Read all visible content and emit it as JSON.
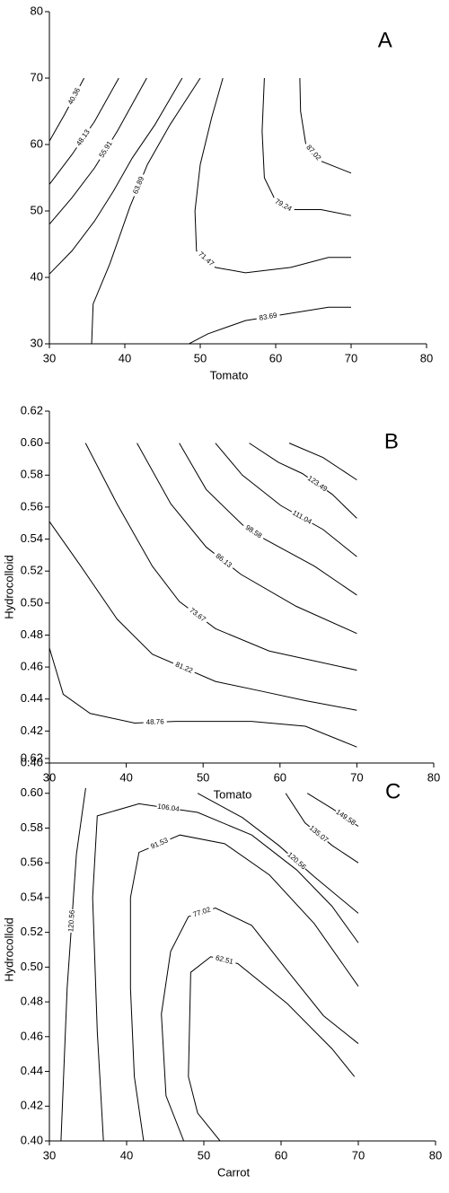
{
  "chart_data": [
    {
      "type": "contour",
      "panel_label": "A",
      "xlabel": "Tomato",
      "xlim": [
        30,
        80
      ],
      "ylim": [
        30,
        80
      ],
      "xticks": [
        30,
        40,
        50,
        60,
        70,
        80
      ],
      "yticks": [
        30,
        40,
        50,
        60,
        70,
        80
      ],
      "contours": [
        {
          "level": 40.36,
          "x": [
            30,
            32,
            34.6
          ],
          "y": [
            60.5,
            64.5,
            70
          ]
        },
        {
          "level": 48.13,
          "x": [
            30,
            33,
            36,
            39.2
          ],
          "y": [
            54,
            58.5,
            63.5,
            70
          ]
        },
        {
          "level": 55.91,
          "x": [
            30,
            33,
            36,
            39,
            42.9
          ],
          "y": [
            48,
            52,
            56.5,
            62,
            70
          ]
        },
        {
          "level": null,
          "x": [
            30,
            33,
            36,
            38.5,
            41,
            44,
            47.6
          ],
          "y": [
            40.5,
            44,
            48.5,
            53,
            58,
            63,
            70
          ]
        },
        {
          "level": 63.89,
          "x": [
            35.6,
            35.8,
            38,
            40.7,
            43,
            46,
            50
          ],
          "y": [
            30,
            36,
            42,
            50.7,
            57,
            63,
            70
          ]
        },
        {
          "level": 71.47,
          "x": [
            53,
            51.5,
            50,
            49.3,
            49.5,
            52,
            56,
            62,
            67,
            70
          ],
          "y": [
            70,
            64,
            57,
            50,
            44,
            41.5,
            40.7,
            41.5,
            43,
            43
          ]
        },
        {
          "level": 79.24,
          "x": [
            58.5,
            58.2,
            58.5,
            60,
            62,
            66,
            70
          ],
          "y": [
            70,
            62,
            55,
            51.5,
            50.2,
            50.2,
            49.3
          ]
        },
        {
          "level": 87.02,
          "x": [
            63.2,
            63.3,
            64,
            66,
            70
          ],
          "y": [
            70,
            65,
            60,
            57.5,
            55.7
          ]
        },
        {
          "level": 83.69,
          "x": [
            48.5,
            51,
            56,
            62,
            67,
            70
          ],
          "y": [
            30,
            31.5,
            33.5,
            34.6,
            35.5,
            35.5
          ]
        }
      ]
    },
    {
      "type": "contour",
      "panel_label": "B",
      "xlabel": "Tomato",
      "ylabel": "Hydrocolloid",
      "xlim": [
        30,
        80
      ],
      "ylim": [
        0.4,
        0.62
      ],
      "xticks": [
        30,
        40,
        50,
        60,
        70,
        80
      ],
      "yticks": [
        {
          "value": 0.4,
          "label": "0.40"
        },
        0.42,
        0.44,
        0.46,
        0.48,
        {
          "value": 0.5,
          "label": "0.50"
        },
        0.52,
        0.54,
        0.56,
        0.58,
        {
          "value": 0.6,
          "label": "0.60"
        },
        0.62
      ],
      "contours": [
        {
          "level": 48.76,
          "x": [
            30,
            31.8,
            35.3,
            41.1,
            46.4,
            56.3,
            63.3,
            70
          ],
          "y": [
            0.472,
            0.443,
            0.431,
            0.425,
            0.426,
            0.426,
            0.423,
            0.41
          ]
        },
        {
          "level": 81.22,
          "x": [
            30,
            34.1,
            38.8,
            43.4,
            51.6,
            57.5,
            63.3,
            70
          ],
          "y": [
            0.551,
            0.523,
            0.49,
            0.468,
            0.451,
            0.445,
            0.439,
            0.433
          ]
        },
        {
          "level": 73.67,
          "x": [
            34.7,
            38.8,
            43.4,
            46.9,
            51.6,
            58.6,
            70
          ],
          "y": [
            0.6,
            0.562,
            0.523,
            0.501,
            0.484,
            0.47,
            0.458
          ]
        },
        {
          "level": 86.13,
          "x": [
            41.4,
            45.8,
            50.4,
            54.9,
            62.1,
            70
          ],
          "y": [
            0.6,
            0.562,
            0.535,
            0.518,
            0.498,
            0.481
          ]
        },
        {
          "level": 98.58,
          "x": [
            46.9,
            50.4,
            55.1,
            58,
            64.5,
            70
          ],
          "y": [
            0.6,
            0.571,
            0.549,
            0.54,
            0.523,
            0.505
          ]
        },
        {
          "level": 111.04,
          "x": [
            51.6,
            55.1,
            60.1,
            65.6,
            70
          ],
          "y": [
            0.6,
            0.58,
            0.561,
            0.546,
            0.529
          ]
        },
        {
          "level": 123.49,
          "x": [
            56,
            59.8,
            62.9,
            66.8,
            70
          ],
          "y": [
            0.6,
            0.588,
            0.581,
            0.568,
            0.553
          ]
        },
        {
          "level": null,
          "x": [
            61.2,
            65.6,
            70
          ],
          "y": [
            0.6,
            0.591,
            0.577
          ]
        }
      ]
    },
    {
      "type": "contour",
      "panel_label": "C",
      "xlabel": "Carrot",
      "ylabel": "Hydrocolloid",
      "xlim": [
        30,
        80
      ],
      "ylim": [
        0.4,
        0.62
      ],
      "xticks": [
        30,
        40,
        50,
        60,
        70,
        80
      ],
      "yticks": [
        {
          "value": 0.4,
          "label": "0.40"
        },
        0.42,
        0.44,
        0.46,
        0.48,
        {
          "value": 0.5,
          "label": "0.50"
        },
        0.52,
        0.54,
        0.56,
        0.58,
        {
          "value": 0.6,
          "label": "0.60"
        },
        0.62
      ],
      "contours": [
        {
          "level": 120.56,
          "x": [
            31.5,
            32.3,
            33.5,
            34.7
          ],
          "y": [
            0.4,
            0.488,
            0.565,
            0.603
          ]
        },
        {
          "level": 106.04,
          "x": [
            37,
            36.2,
            35.6,
            36.2,
            41.6,
            49.2,
            56.2,
            62,
            66.6,
            70
          ],
          "y": [
            0.4,
            0.463,
            0.54,
            0.587,
            0.594,
            0.589,
            0.576,
            0.556,
            0.535,
            0.514
          ]
        },
        {
          "level": 91.53,
          "x": [
            42.2,
            41,
            40.5,
            40.5,
            41.6,
            46.9,
            52.7,
            58.5,
            64.3,
            70
          ],
          "y": [
            0.4,
            0.437,
            0.488,
            0.54,
            0.566,
            0.576,
            0.571,
            0.553,
            0.525,
            0.489
          ]
        },
        {
          "level": 77.02,
          "x": [
            47.4,
            45.1,
            44.5,
            45.7,
            48,
            51.5,
            56.2,
            60.8,
            65.5,
            70
          ],
          "y": [
            0.4,
            0.426,
            0.473,
            0.509,
            0.529,
            0.534,
            0.524,
            0.498,
            0.472,
            0.456
          ]
        },
        {
          "level": 62.51,
          "x": [
            52.1,
            49.2,
            48,
            48.3,
            50.9,
            54.4,
            60.8,
            66.6,
            69.5
          ],
          "y": [
            0.4,
            0.416,
            0.437,
            0.497,
            0.506,
            0.502,
            0.479,
            0.453,
            0.437
          ]
        },
        {
          "level": 120.56,
          "x": [
            49.2,
            55,
            59.7,
            64.3,
            70
          ],
          "y": [
            0.6,
            0.586,
            0.57,
            0.552,
            0.531
          ]
        },
        {
          "level": 135.07,
          "x": [
            60.6,
            63.1,
            66.6,
            70
          ],
          "y": [
            0.6,
            0.583,
            0.57,
            0.56
          ]
        },
        {
          "level": 149.58,
          "x": [
            63.4,
            66.7,
            70
          ],
          "y": [
            0.6,
            0.591,
            0.581
          ]
        }
      ]
    }
  ]
}
